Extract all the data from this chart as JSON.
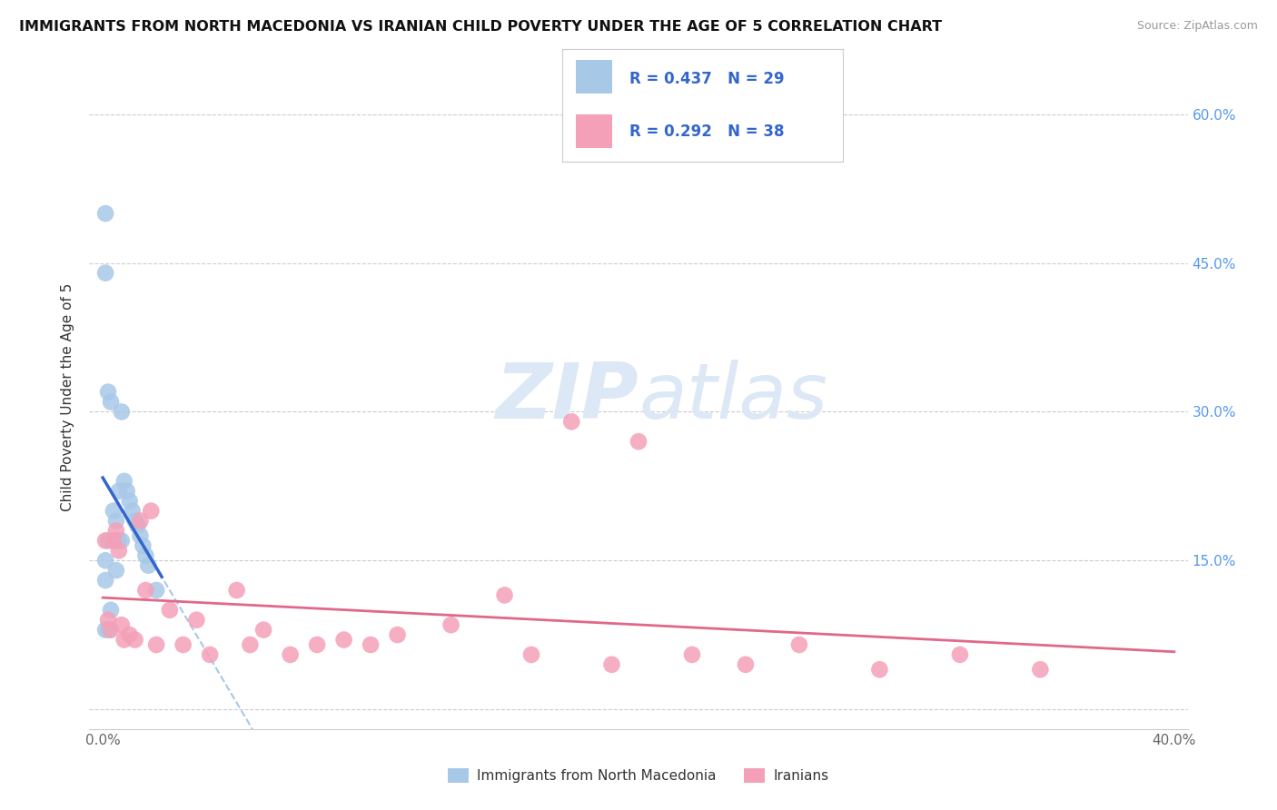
{
  "title": "IMMIGRANTS FROM NORTH MACEDONIA VS IRANIAN CHILD POVERTY UNDER THE AGE OF 5 CORRELATION CHART",
  "source": "Source: ZipAtlas.com",
  "ylabel": "Child Poverty Under the Age of 5",
  "ytick_vals": [
    0.0,
    0.15,
    0.3,
    0.45,
    0.6
  ],
  "ytick_labels": [
    "",
    "15.0%",
    "30.0%",
    "45.0%",
    "60.0%"
  ],
  "right_tick_color": "#5599ee",
  "legend_r1": "R = 0.437   N = 29",
  "legend_r2": "R = 0.292   N = 38",
  "legend_label1": "Immigrants from North Macedonia",
  "legend_label2": "Iranians",
  "color_blue": "#a8c8e8",
  "color_pink": "#f4a0b8",
  "line_blue_solid": "#3366cc",
  "line_blue_dash": "#a8c8e8",
  "line_pink": "#e06888",
  "watermark_color": "#dce8f5",
  "title_color": "#111111",
  "source_color": "#999999",
  "mac_points_x": [
    0.001,
    0.001,
    0.001,
    0.001,
    0.001,
    0.002,
    0.002,
    0.002,
    0.003,
    0.003,
    0.004,
    0.004,
    0.005,
    0.005,
    0.006,
    0.006,
    0.007,
    0.007,
    0.008,
    0.009,
    0.01,
    0.011,
    0.012,
    0.013,
    0.014,
    0.015,
    0.016,
    0.017,
    0.02
  ],
  "mac_points_y": [
    0.5,
    0.44,
    0.15,
    0.13,
    0.08,
    0.32,
    0.17,
    0.08,
    0.31,
    0.1,
    0.2,
    0.17,
    0.19,
    0.14,
    0.22,
    0.17,
    0.3,
    0.17,
    0.23,
    0.22,
    0.21,
    0.2,
    0.19,
    0.185,
    0.175,
    0.165,
    0.155,
    0.145,
    0.12
  ],
  "iran_points_x": [
    0.001,
    0.002,
    0.003,
    0.004,
    0.005,
    0.006,
    0.007,
    0.008,
    0.01,
    0.012,
    0.014,
    0.016,
    0.018,
    0.02,
    0.025,
    0.03,
    0.035,
    0.04,
    0.05,
    0.055,
    0.06,
    0.07,
    0.08,
    0.09,
    0.1,
    0.11,
    0.13,
    0.15,
    0.16,
    0.175,
    0.19,
    0.2,
    0.22,
    0.24,
    0.26,
    0.29,
    0.32,
    0.35
  ],
  "iran_points_y": [
    0.17,
    0.09,
    0.08,
    0.17,
    0.18,
    0.16,
    0.085,
    0.07,
    0.075,
    0.07,
    0.19,
    0.12,
    0.2,
    0.065,
    0.1,
    0.065,
    0.09,
    0.055,
    0.12,
    0.065,
    0.08,
    0.055,
    0.065,
    0.07,
    0.065,
    0.075,
    0.085,
    0.115,
    0.055,
    0.29,
    0.045,
    0.27,
    0.055,
    0.045,
    0.065,
    0.04,
    0.055,
    0.04
  ],
  "xlim": [
    -0.005,
    0.405
  ],
  "ylim": [
    -0.02,
    0.65
  ],
  "xmin": 0.0,
  "xmax": 0.4
}
